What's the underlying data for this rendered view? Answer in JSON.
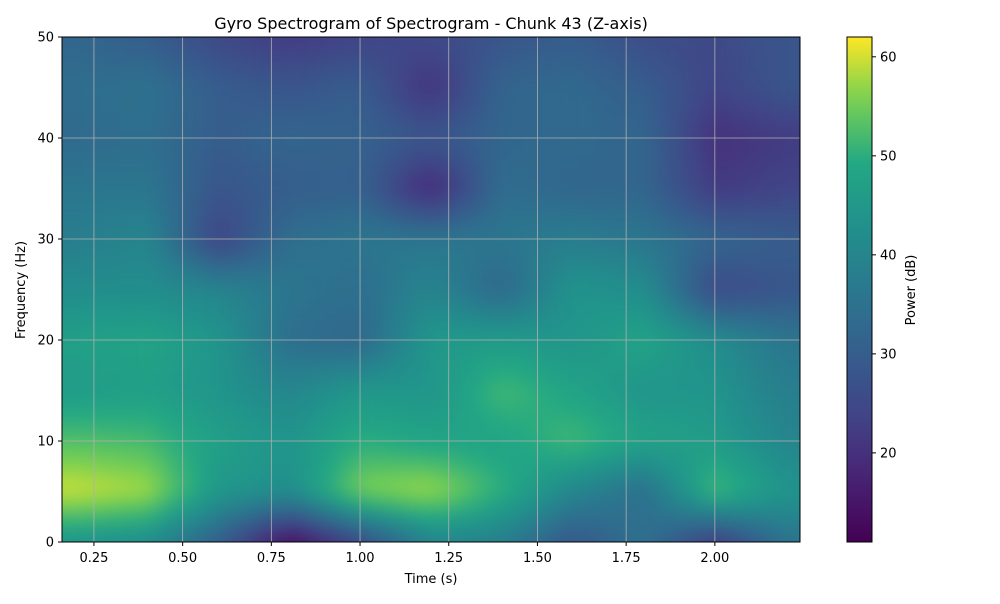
{
  "chart_data": {
    "type": "heatmap",
    "title": "Gyro Spectrogram of Spectrogram - Chunk 43 (Z-axis)",
    "xlabel": "Time (s)",
    "ylabel": "Frequency (Hz)",
    "xlim": [
      0.16,
      2.24
    ],
    "ylim": [
      0,
      50
    ],
    "x_ticks": [
      0.25,
      0.5,
      0.75,
      1.0,
      1.25,
      1.5,
      1.75,
      2.0
    ],
    "x_tick_labels": [
      "0.25",
      "0.50",
      "0.75",
      "1.00",
      "1.25",
      "1.50",
      "1.75",
      "2.00"
    ],
    "y_ticks": [
      0,
      10,
      20,
      30,
      40,
      50
    ],
    "y_tick_labels": [
      "0",
      "10",
      "20",
      "30",
      "40",
      "50"
    ],
    "grid": true,
    "colormap": "viridis",
    "colorbar": {
      "label": "Power (dB)",
      "range": [
        11,
        62
      ],
      "ticks": [
        20,
        30,
        40,
        50,
        60
      ],
      "tick_labels": [
        "20",
        "30",
        "40",
        "50",
        "60"
      ]
    },
    "time": [
      0.2,
      0.4,
      0.6,
      0.8,
      1.0,
      1.2,
      1.4,
      1.6,
      1.8,
      2.0,
      2.2
    ],
    "frequency": [
      0,
      5,
      10,
      15,
      20,
      25,
      30,
      35,
      40,
      45,
      50
    ],
    "power_db": [
      [
        44,
        42,
        30,
        13,
        25,
        40,
        38,
        28,
        35,
        22,
        35
      ],
      [
        60,
        58,
        45,
        42,
        56,
        58,
        50,
        40,
        34,
        52,
        44
      ],
      [
        53,
        52,
        47,
        44,
        50,
        48,
        48,
        52,
        48,
        46,
        40
      ],
      [
        46,
        47,
        44,
        40,
        45,
        44,
        52,
        48,
        44,
        44,
        38
      ],
      [
        47,
        48,
        44,
        34,
        32,
        45,
        46,
        44,
        48,
        42,
        36
      ],
      [
        42,
        42,
        40,
        36,
        34,
        40,
        32,
        44,
        42,
        25,
        28
      ],
      [
        38,
        40,
        24,
        34,
        36,
        36,
        36,
        38,
        36,
        32,
        30
      ],
      [
        36,
        36,
        28,
        30,
        31,
        18,
        34,
        32,
        32,
        22,
        24
      ],
      [
        33,
        34,
        30,
        32,
        31,
        28,
        32,
        33,
        32,
        20,
        22
      ],
      [
        34,
        35,
        30,
        28,
        30,
        20,
        32,
        33,
        30,
        24,
        28
      ],
      [
        32,
        30,
        25,
        22,
        24,
        25,
        28,
        30,
        26,
        25,
        28
      ]
    ]
  }
}
